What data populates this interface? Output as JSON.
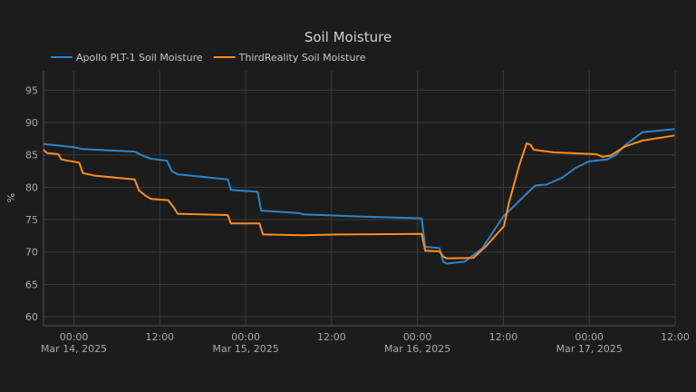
{
  "chart_data": {
    "type": "line",
    "title": "Soil Moisture",
    "xlabel": "",
    "ylabel": "%",
    "ylim": [
      58.6,
      98
    ],
    "xlim": [
      "2025-03-13T19:45",
      "2025-03-17T12:00"
    ],
    "yticks": [
      60,
      65,
      70,
      75,
      80,
      85,
      90,
      95
    ],
    "xticks": [
      {
        "t": "2025-03-14T00:00",
        "label": "00:00",
        "date": "Mar 14, 2025"
      },
      {
        "t": "2025-03-14T12:00",
        "label": "12:00",
        "date": ""
      },
      {
        "t": "2025-03-15T00:00",
        "label": "00:00",
        "date": "Mar 15, 2025"
      },
      {
        "t": "2025-03-15T12:00",
        "label": "12:00",
        "date": ""
      },
      {
        "t": "2025-03-16T00:00",
        "label": "00:00",
        "date": "Mar 16, 2025"
      },
      {
        "t": "2025-03-16T12:00",
        "label": "12:00",
        "date": ""
      },
      {
        "t": "2025-03-17T00:00",
        "label": "00:00",
        "date": "Mar 17, 2025"
      },
      {
        "t": "2025-03-17T12:00",
        "label": "12:00",
        "date": ""
      }
    ],
    "grid": true,
    "legend_placement": "top-left",
    "series": [
      {
        "name": "Apollo PLT-1 Soil Moisture",
        "color": "#2a85c8",
        "points": [
          [
            "2025-03-13T19:45",
            86.7
          ],
          [
            "2025-03-14T00:00",
            86.2
          ],
          [
            "2025-03-14T01:15",
            85.9
          ],
          [
            "2025-03-14T08:30",
            85.5
          ],
          [
            "2025-03-14T09:45",
            84.8
          ],
          [
            "2025-03-14T10:45",
            84.4
          ],
          [
            "2025-03-14T13:00",
            84.1
          ],
          [
            "2025-03-14T13:40",
            82.5
          ],
          [
            "2025-03-14T14:30",
            82.0
          ],
          [
            "2025-03-14T21:30",
            81.2
          ],
          [
            "2025-03-14T21:55",
            79.6
          ],
          [
            "2025-03-15T01:40",
            79.3
          ],
          [
            "2025-03-15T02:10",
            76.4
          ],
          [
            "2025-03-15T07:30",
            76.0
          ],
          [
            "2025-03-15T08:05",
            75.8
          ],
          [
            "2025-03-15T15:35",
            75.5
          ],
          [
            "2025-03-16T00:35",
            75.2
          ],
          [
            "2025-03-16T01:05",
            70.8
          ],
          [
            "2025-03-16T03:05",
            70.6
          ],
          [
            "2025-03-16T03:35",
            68.5
          ],
          [
            "2025-03-16T04:05",
            68.2
          ],
          [
            "2025-03-16T06:35",
            68.5
          ],
          [
            "2025-03-16T09:00",
            70.5
          ],
          [
            "2025-03-16T12:00",
            75.5
          ],
          [
            "2025-03-16T15:15",
            79.0
          ],
          [
            "2025-03-16T16:30",
            80.3
          ],
          [
            "2025-03-16T18:00",
            80.4
          ],
          [
            "2025-03-16T20:15",
            81.5
          ],
          [
            "2025-03-16T22:05",
            83.0
          ],
          [
            "2025-03-17T00:00",
            84.0
          ],
          [
            "2025-03-17T02:30",
            84.3
          ],
          [
            "2025-03-17T03:45",
            85.0
          ],
          [
            "2025-03-17T05:00",
            86.5
          ],
          [
            "2025-03-17T07:25",
            88.5
          ],
          [
            "2025-03-17T11:55",
            89.0
          ]
        ]
      },
      {
        "name": "ThirdReality Soil Moisture",
        "color": "#ff8c1e",
        "points": [
          [
            "2025-03-13T19:45",
            85.8
          ],
          [
            "2025-03-13T20:15",
            85.3
          ],
          [
            "2025-03-13T21:50",
            85.1
          ],
          [
            "2025-03-13T22:15",
            84.3
          ],
          [
            "2025-03-14T00:45",
            83.8
          ],
          [
            "2025-03-14T01:15",
            82.2
          ],
          [
            "2025-03-14T02:50",
            81.8
          ],
          [
            "2025-03-14T08:30",
            81.2
          ],
          [
            "2025-03-14T09:05",
            79.5
          ],
          [
            "2025-03-14T10:00",
            78.7
          ],
          [
            "2025-03-14T10:45",
            78.2
          ],
          [
            "2025-03-14T13:10",
            78.0
          ],
          [
            "2025-03-14T14:00",
            76.8
          ],
          [
            "2025-03-14T14:30",
            75.9
          ],
          [
            "2025-03-14T21:30",
            75.7
          ],
          [
            "2025-03-14T21:55",
            74.4
          ],
          [
            "2025-03-15T01:55",
            74.4
          ],
          [
            "2025-03-15T02:25",
            72.7
          ],
          [
            "2025-03-15T08:05",
            72.6
          ],
          [
            "2025-03-15T13:05",
            72.7
          ],
          [
            "2025-03-16T00:35",
            72.8
          ],
          [
            "2025-03-16T01:05",
            70.2
          ],
          [
            "2025-03-16T03:05",
            70.1
          ],
          [
            "2025-03-16T03:35",
            69.3
          ],
          [
            "2025-03-16T04:05",
            69.0
          ],
          [
            "2025-03-16T07:50",
            69.1
          ],
          [
            "2025-03-16T09:40",
            71.0
          ],
          [
            "2025-03-16T12:05",
            74.0
          ],
          [
            "2025-03-16T12:45",
            77.5
          ],
          [
            "2025-03-16T14:15",
            83.5
          ],
          [
            "2025-03-16T15:15",
            86.8
          ],
          [
            "2025-03-16T15:45",
            86.6
          ],
          [
            "2025-03-16T16:15",
            85.8
          ],
          [
            "2025-03-16T19:00",
            85.4
          ],
          [
            "2025-03-17T01:00",
            85.1
          ],
          [
            "2025-03-17T01:55",
            84.7
          ],
          [
            "2025-03-17T03:00",
            84.9
          ],
          [
            "2025-03-17T05:00",
            86.3
          ],
          [
            "2025-03-17T07:25",
            87.2
          ],
          [
            "2025-03-17T11:55",
            88.0
          ]
        ]
      }
    ]
  }
}
